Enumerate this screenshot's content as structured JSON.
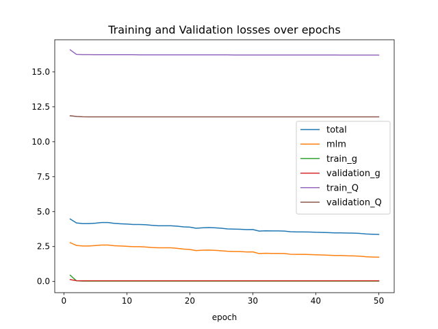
{
  "chart_data": {
    "type": "line",
    "title": "Training and Validation losses over epochs",
    "xlabel": "epoch",
    "ylabel": "",
    "xlim": [
      -1.45,
      52.45
    ],
    "ylim": [
      -0.8,
      17.3
    ],
    "xticks": [
      0,
      10,
      20,
      30,
      40,
      50
    ],
    "yticks": [
      0.0,
      2.5,
      5.0,
      7.5,
      10.0,
      12.5,
      15.0
    ],
    "ytick_labels": [
      "0.0",
      "2.5",
      "5.0",
      "7.5",
      "10.0",
      "12.5",
      "15.0"
    ],
    "grid": false,
    "legend_position": "center-right",
    "x": [
      1,
      2,
      3,
      4,
      5,
      6,
      7,
      8,
      9,
      10,
      11,
      12,
      13,
      14,
      15,
      16,
      17,
      18,
      19,
      20,
      21,
      22,
      23,
      24,
      25,
      26,
      27,
      28,
      29,
      30,
      31,
      32,
      33,
      34,
      35,
      36,
      37,
      38,
      39,
      40,
      41,
      42,
      43,
      44,
      45,
      46,
      47,
      48,
      49,
      50
    ],
    "series": [
      {
        "name": "total",
        "color": "#1f77b4",
        "values": [
          4.47,
          4.19,
          4.14,
          4.14,
          4.17,
          4.22,
          4.22,
          4.16,
          4.13,
          4.11,
          4.08,
          4.08,
          4.06,
          4.02,
          3.99,
          3.99,
          3.99,
          3.96,
          3.91,
          3.89,
          3.81,
          3.84,
          3.86,
          3.84,
          3.81,
          3.76,
          3.75,
          3.74,
          3.71,
          3.72,
          3.61,
          3.63,
          3.62,
          3.62,
          3.61,
          3.56,
          3.55,
          3.55,
          3.54,
          3.52,
          3.51,
          3.5,
          3.48,
          3.48,
          3.47,
          3.46,
          3.44,
          3.4,
          3.38,
          3.37
        ]
      },
      {
        "name": "mlm",
        "color": "#ff7f0e",
        "values": [
          2.78,
          2.58,
          2.54,
          2.54,
          2.57,
          2.61,
          2.61,
          2.56,
          2.54,
          2.52,
          2.49,
          2.49,
          2.47,
          2.43,
          2.41,
          2.41,
          2.41,
          2.37,
          2.32,
          2.29,
          2.21,
          2.24,
          2.25,
          2.23,
          2.2,
          2.16,
          2.15,
          2.14,
          2.11,
          2.12,
          2.0,
          2.02,
          2.01,
          2.01,
          2.0,
          1.95,
          1.94,
          1.94,
          1.93,
          1.91,
          1.9,
          1.88,
          1.86,
          1.86,
          1.84,
          1.83,
          1.81,
          1.77,
          1.75,
          1.74
        ]
      },
      {
        "name": "train_g",
        "color": "#2ca02c",
        "values": [
          0.45,
          0.05,
          0.03,
          0.03,
          0.03,
          0.03,
          0.03,
          0.03,
          0.03,
          0.03,
          0.03,
          0.03,
          0.03,
          0.03,
          0.03,
          0.03,
          0.03,
          0.03,
          0.03,
          0.03,
          0.03,
          0.03,
          0.03,
          0.03,
          0.03,
          0.03,
          0.03,
          0.03,
          0.03,
          0.03,
          0.03,
          0.03,
          0.03,
          0.03,
          0.03,
          0.03,
          0.03,
          0.03,
          0.03,
          0.03,
          0.03,
          0.03,
          0.03,
          0.03,
          0.03,
          0.03,
          0.03,
          0.03,
          0.03,
          0.03
        ]
      },
      {
        "name": "validation_g",
        "color": "#d62728",
        "values": [
          0.14,
          0.06,
          0.05,
          0.05,
          0.05,
          0.05,
          0.05,
          0.05,
          0.05,
          0.05,
          0.05,
          0.05,
          0.05,
          0.05,
          0.05,
          0.05,
          0.05,
          0.05,
          0.05,
          0.05,
          0.05,
          0.05,
          0.05,
          0.05,
          0.05,
          0.05,
          0.05,
          0.05,
          0.05,
          0.05,
          0.05,
          0.05,
          0.05,
          0.05,
          0.05,
          0.05,
          0.05,
          0.05,
          0.05,
          0.05,
          0.05,
          0.05,
          0.05,
          0.05,
          0.05,
          0.05,
          0.05,
          0.05,
          0.05,
          0.05
        ]
      },
      {
        "name": "train_Q",
        "color": "#9467bd",
        "values": [
          16.58,
          16.25,
          16.24,
          16.24,
          16.23,
          16.23,
          16.23,
          16.23,
          16.23,
          16.23,
          16.23,
          16.22,
          16.22,
          16.22,
          16.22,
          16.22,
          16.22,
          16.22,
          16.22,
          16.22,
          16.22,
          16.22,
          16.22,
          16.22,
          16.22,
          16.22,
          16.21,
          16.21,
          16.21,
          16.21,
          16.21,
          16.21,
          16.21,
          16.21,
          16.21,
          16.21,
          16.21,
          16.21,
          16.21,
          16.21,
          16.21,
          16.21,
          16.21,
          16.2,
          16.2,
          16.2,
          16.2,
          16.2,
          16.2,
          16.2
        ]
      },
      {
        "name": "validation_Q",
        "color": "#8c564b",
        "values": [
          11.86,
          11.81,
          11.79,
          11.78,
          11.78,
          11.78,
          11.78,
          11.78,
          11.78,
          11.78,
          11.78,
          11.78,
          11.78,
          11.78,
          11.78,
          11.78,
          11.78,
          11.78,
          11.78,
          11.78,
          11.78,
          11.78,
          11.78,
          11.78,
          11.78,
          11.78,
          11.78,
          11.78,
          11.78,
          11.78,
          11.78,
          11.78,
          11.78,
          11.78,
          11.78,
          11.78,
          11.78,
          11.78,
          11.78,
          11.78,
          11.78,
          11.78,
          11.78,
          11.78,
          11.78,
          11.78,
          11.78,
          11.78,
          11.78,
          11.78
        ]
      }
    ]
  }
}
